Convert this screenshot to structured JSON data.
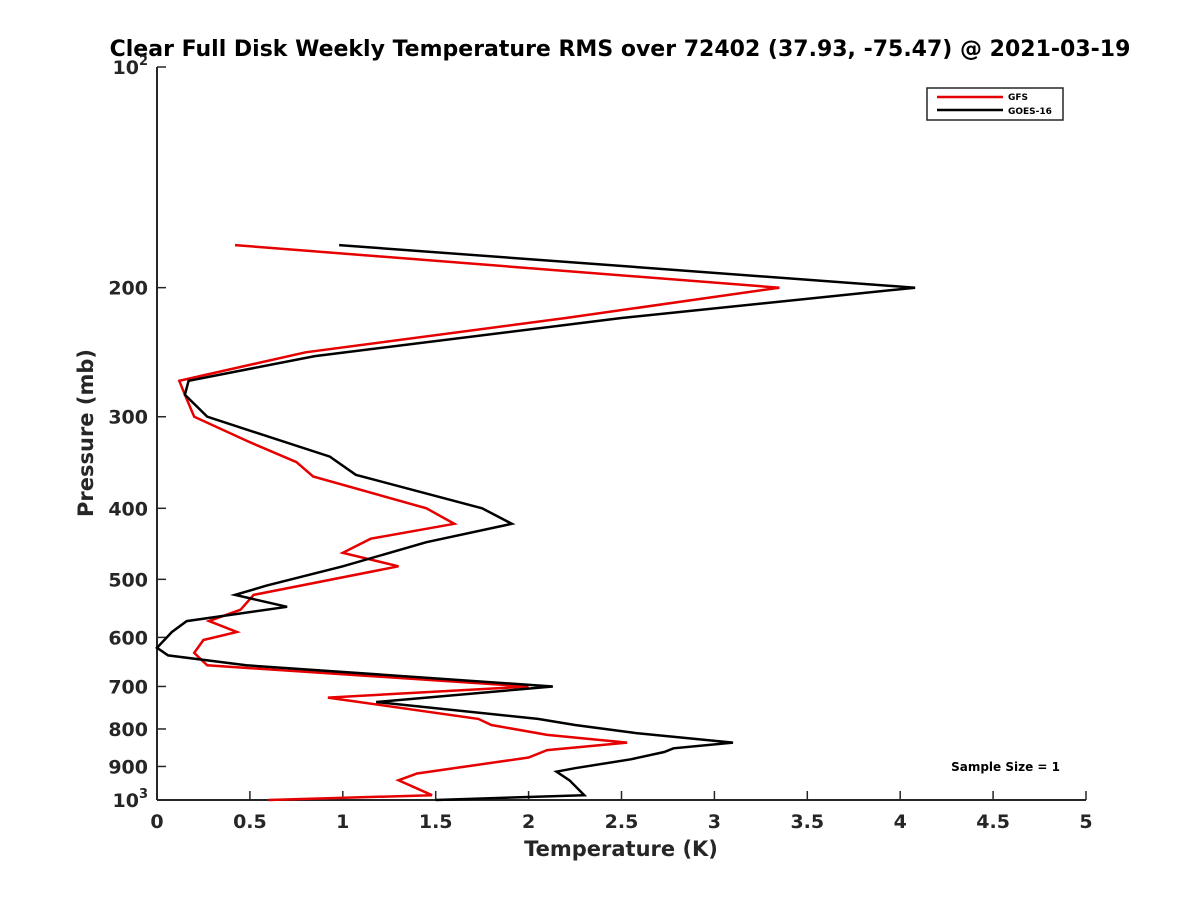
{
  "chart_data": {
    "type": "line",
    "title": "Clear Full Disk Weekly Temperature RMS over 72402 (37.93, -75.47) @ 2021-03-19",
    "xlabel": "Temperature (K)",
    "ylabel": "Pressure (mb)",
    "xlim": [
      0,
      5
    ],
    "ylim": [
      100,
      1000
    ],
    "y_scale": "log",
    "y_reversed": true,
    "x_ticks": [
      0,
      0.5,
      1,
      1.5,
      2,
      2.5,
      3,
      3.5,
      4,
      4.5,
      5
    ],
    "x_tick_labels": [
      "0",
      "0.5",
      "1",
      "1.5",
      "2",
      "2.5",
      "3",
      "3.5",
      "4",
      "4.5",
      "5"
    ],
    "y_ticks": [
      100,
      200,
      300,
      400,
      500,
      600,
      700,
      800,
      900,
      1000
    ],
    "y_tick_labels": [
      {
        "base": "10",
        "sup": "2"
      },
      {
        "base": "200",
        "sup": ""
      },
      {
        "base": "300",
        "sup": ""
      },
      {
        "base": "400",
        "sup": ""
      },
      {
        "base": "500",
        "sup": ""
      },
      {
        "base": "600",
        "sup": ""
      },
      {
        "base": "700",
        "sup": ""
      },
      {
        "base": "800",
        "sup": ""
      },
      {
        "base": "900",
        "sup": ""
      },
      {
        "base": "10",
        "sup": "3"
      }
    ],
    "legend_position": "top-right",
    "annotation": "Sample Size = 1",
    "series": [
      {
        "name": "GFS",
        "color": "#e60000",
        "points": [
          [
            0.42,
            175
          ],
          [
            3.35,
            200
          ],
          [
            2.2,
            220
          ],
          [
            0.8,
            245
          ],
          [
            0.12,
            268
          ],
          [
            0.15,
            280
          ],
          [
            0.2,
            300
          ],
          [
            0.5,
            325
          ],
          [
            0.75,
            346
          ],
          [
            0.84,
            362
          ],
          [
            1.45,
            400
          ],
          [
            1.6,
            420
          ],
          [
            1.15,
            440
          ],
          [
            1.0,
            460
          ],
          [
            1.3,
            480
          ],
          [
            0.52,
            525
          ],
          [
            0.45,
            550
          ],
          [
            0.28,
            570
          ],
          [
            0.43,
            590
          ],
          [
            0.25,
            605
          ],
          [
            0.2,
            630
          ],
          [
            0.27,
            655
          ],
          [
            2.0,
            700
          ],
          [
            0.92,
            725
          ],
          [
            1.73,
            775
          ],
          [
            1.8,
            790
          ],
          [
            2.1,
            815
          ],
          [
            2.53,
            835
          ],
          [
            2.1,
            855
          ],
          [
            2.0,
            875
          ],
          [
            1.4,
            920
          ],
          [
            1.3,
            940
          ],
          [
            1.48,
            985
          ],
          [
            0.6,
            1000
          ]
        ]
      },
      {
        "name": "GOES-16",
        "color": "#000000",
        "points": [
          [
            0.98,
            175
          ],
          [
            4.08,
            200
          ],
          [
            2.5,
            220
          ],
          [
            0.85,
            248
          ],
          [
            0.17,
            268
          ],
          [
            0.15,
            280
          ],
          [
            0.27,
            300
          ],
          [
            0.93,
            340
          ],
          [
            1.07,
            360
          ],
          [
            1.75,
            400
          ],
          [
            1.91,
            420
          ],
          [
            1.45,
            445
          ],
          [
            1.0,
            480
          ],
          [
            0.59,
            510
          ],
          [
            0.42,
            525
          ],
          [
            0.7,
            545
          ],
          [
            0.16,
            570
          ],
          [
            0.08,
            590
          ],
          [
            0.0,
            620
          ],
          [
            0.06,
            635
          ],
          [
            0.48,
            655
          ],
          [
            2.13,
            700
          ],
          [
            1.18,
            735
          ],
          [
            2.05,
            775
          ],
          [
            2.25,
            790
          ],
          [
            2.57,
            810
          ],
          [
            3.1,
            835
          ],
          [
            2.78,
            850
          ],
          [
            2.73,
            860
          ],
          [
            2.55,
            880
          ],
          [
            2.25,
            905
          ],
          [
            2.15,
            915
          ],
          [
            2.22,
            940
          ],
          [
            2.3,
            985
          ],
          [
            1.5,
            1000
          ]
        ]
      }
    ]
  }
}
